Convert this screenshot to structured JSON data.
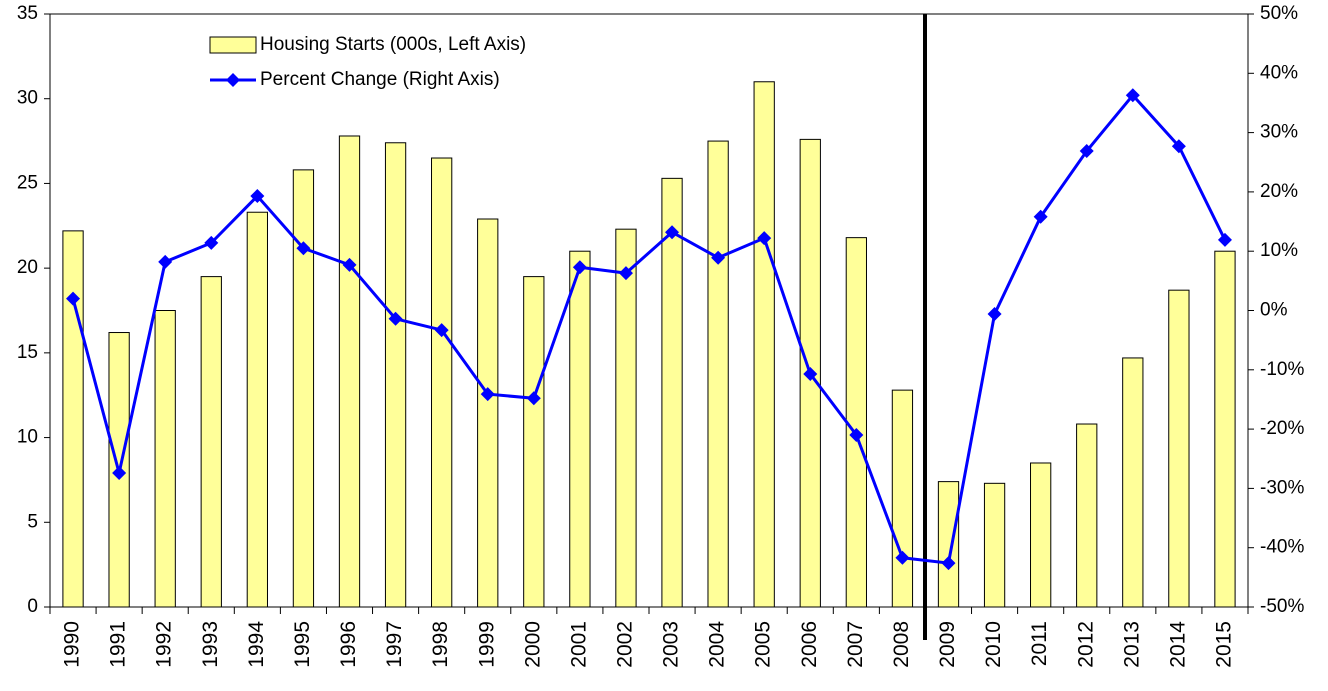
{
  "chart_data": {
    "type": "combo",
    "categories": [
      "1990",
      "1991",
      "1992",
      "1993",
      "1994",
      "1995",
      "1996",
      "1997",
      "1998",
      "1999",
      "2000",
      "2001",
      "2002",
      "2003",
      "2004",
      "2005",
      "2006",
      "2007",
      "2008",
      "2009",
      "2010",
      "2011",
      "2012",
      "2013",
      "2014",
      "2015"
    ],
    "series": [
      {
        "name": "Housing Starts (000s, Left Axis)",
        "type": "bar",
        "color": "#ffff99",
        "values": [
          22.2,
          16.2,
          17.5,
          19.5,
          23.3,
          25.8,
          27.8,
          27.4,
          26.5,
          22.9,
          19.5,
          21.0,
          22.3,
          25.3,
          27.5,
          31.0,
          27.6,
          21.8,
          12.8,
          7.4,
          7.3,
          8.5,
          10.8,
          14.7,
          18.7,
          21.0
        ]
      },
      {
        "name": "Percent Change (Right Axis)",
        "type": "line",
        "color": "#0000ff",
        "axis": "y2",
        "values": [
          2.0,
          -27.4,
          8.2,
          11.4,
          19.3,
          10.5,
          7.7,
          -1.4,
          -3.3,
          -14.1,
          -14.8,
          7.3,
          6.3,
          13.2,
          8.9,
          12.2,
          -10.7,
          -21.0,
          -41.7,
          -42.6,
          -0.6,
          15.8,
          26.9,
          36.3,
          27.7,
          11.9
        ]
      }
    ],
    "ylim": [
      0,
      35
    ],
    "yticks": [
      0,
      5,
      10,
      15,
      20,
      25,
      30,
      35
    ],
    "y2lim": [
      -50,
      50
    ],
    "y2ticks": [
      {
        "value": -50,
        "label": "-50%"
      },
      {
        "value": -40,
        "label": "-40%"
      },
      {
        "value": -30,
        "label": "-30%"
      },
      {
        "value": -20,
        "label": "-20%"
      },
      {
        "value": -10,
        "label": "-10%"
      },
      {
        "value": 0,
        "label": "0%"
      },
      {
        "value": 10,
        "label": "10%"
      },
      {
        "value": 20,
        "label": "20%"
      },
      {
        "value": 30,
        "label": "30%"
      },
      {
        "value": 40,
        "label": "40%"
      },
      {
        "value": 50,
        "label": "50%"
      }
    ],
    "legend": "upper-left"
  }
}
